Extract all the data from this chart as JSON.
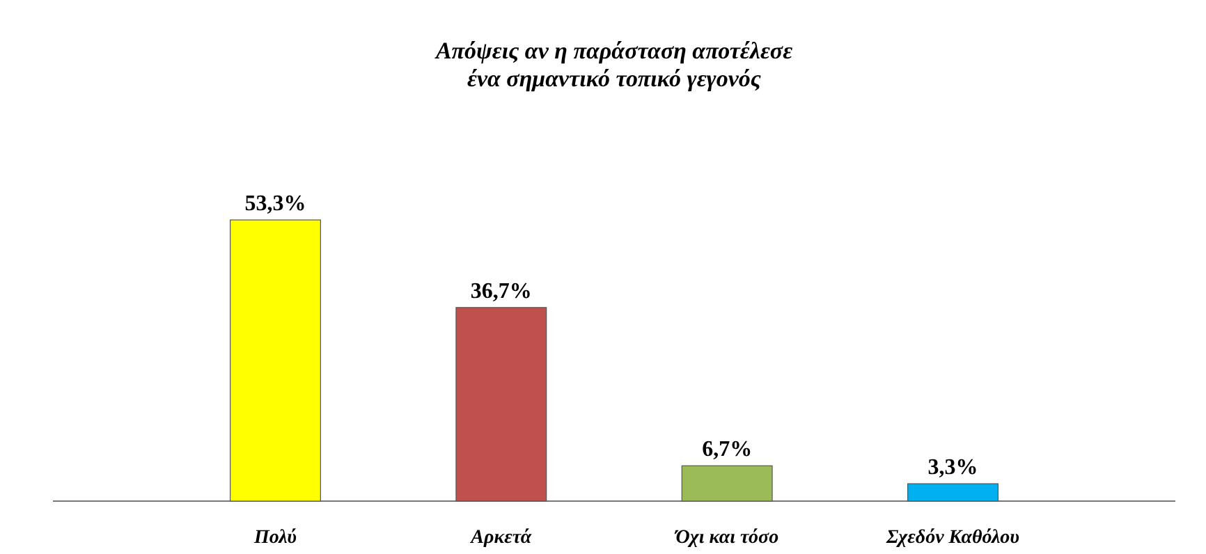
{
  "chart_data": {
    "type": "bar",
    "title": "Απόψεις αν η παράσταση αποτέλεσε\nένα σημαντικό τοπικό γεγονός",
    "categories": [
      "Πολύ",
      "Αρκετά",
      "Όχι και τόσο",
      "Σχεδόν Καθόλου"
    ],
    "values": [
      53.3,
      36.7,
      6.7,
      3.3
    ],
    "colors": [
      "#ffff00",
      "#c0504d",
      "#9bbb59",
      "#00b0f0"
    ],
    "value_labels": [
      "53,3%",
      "36,7%",
      "6,7%",
      "3,3%"
    ]
  }
}
